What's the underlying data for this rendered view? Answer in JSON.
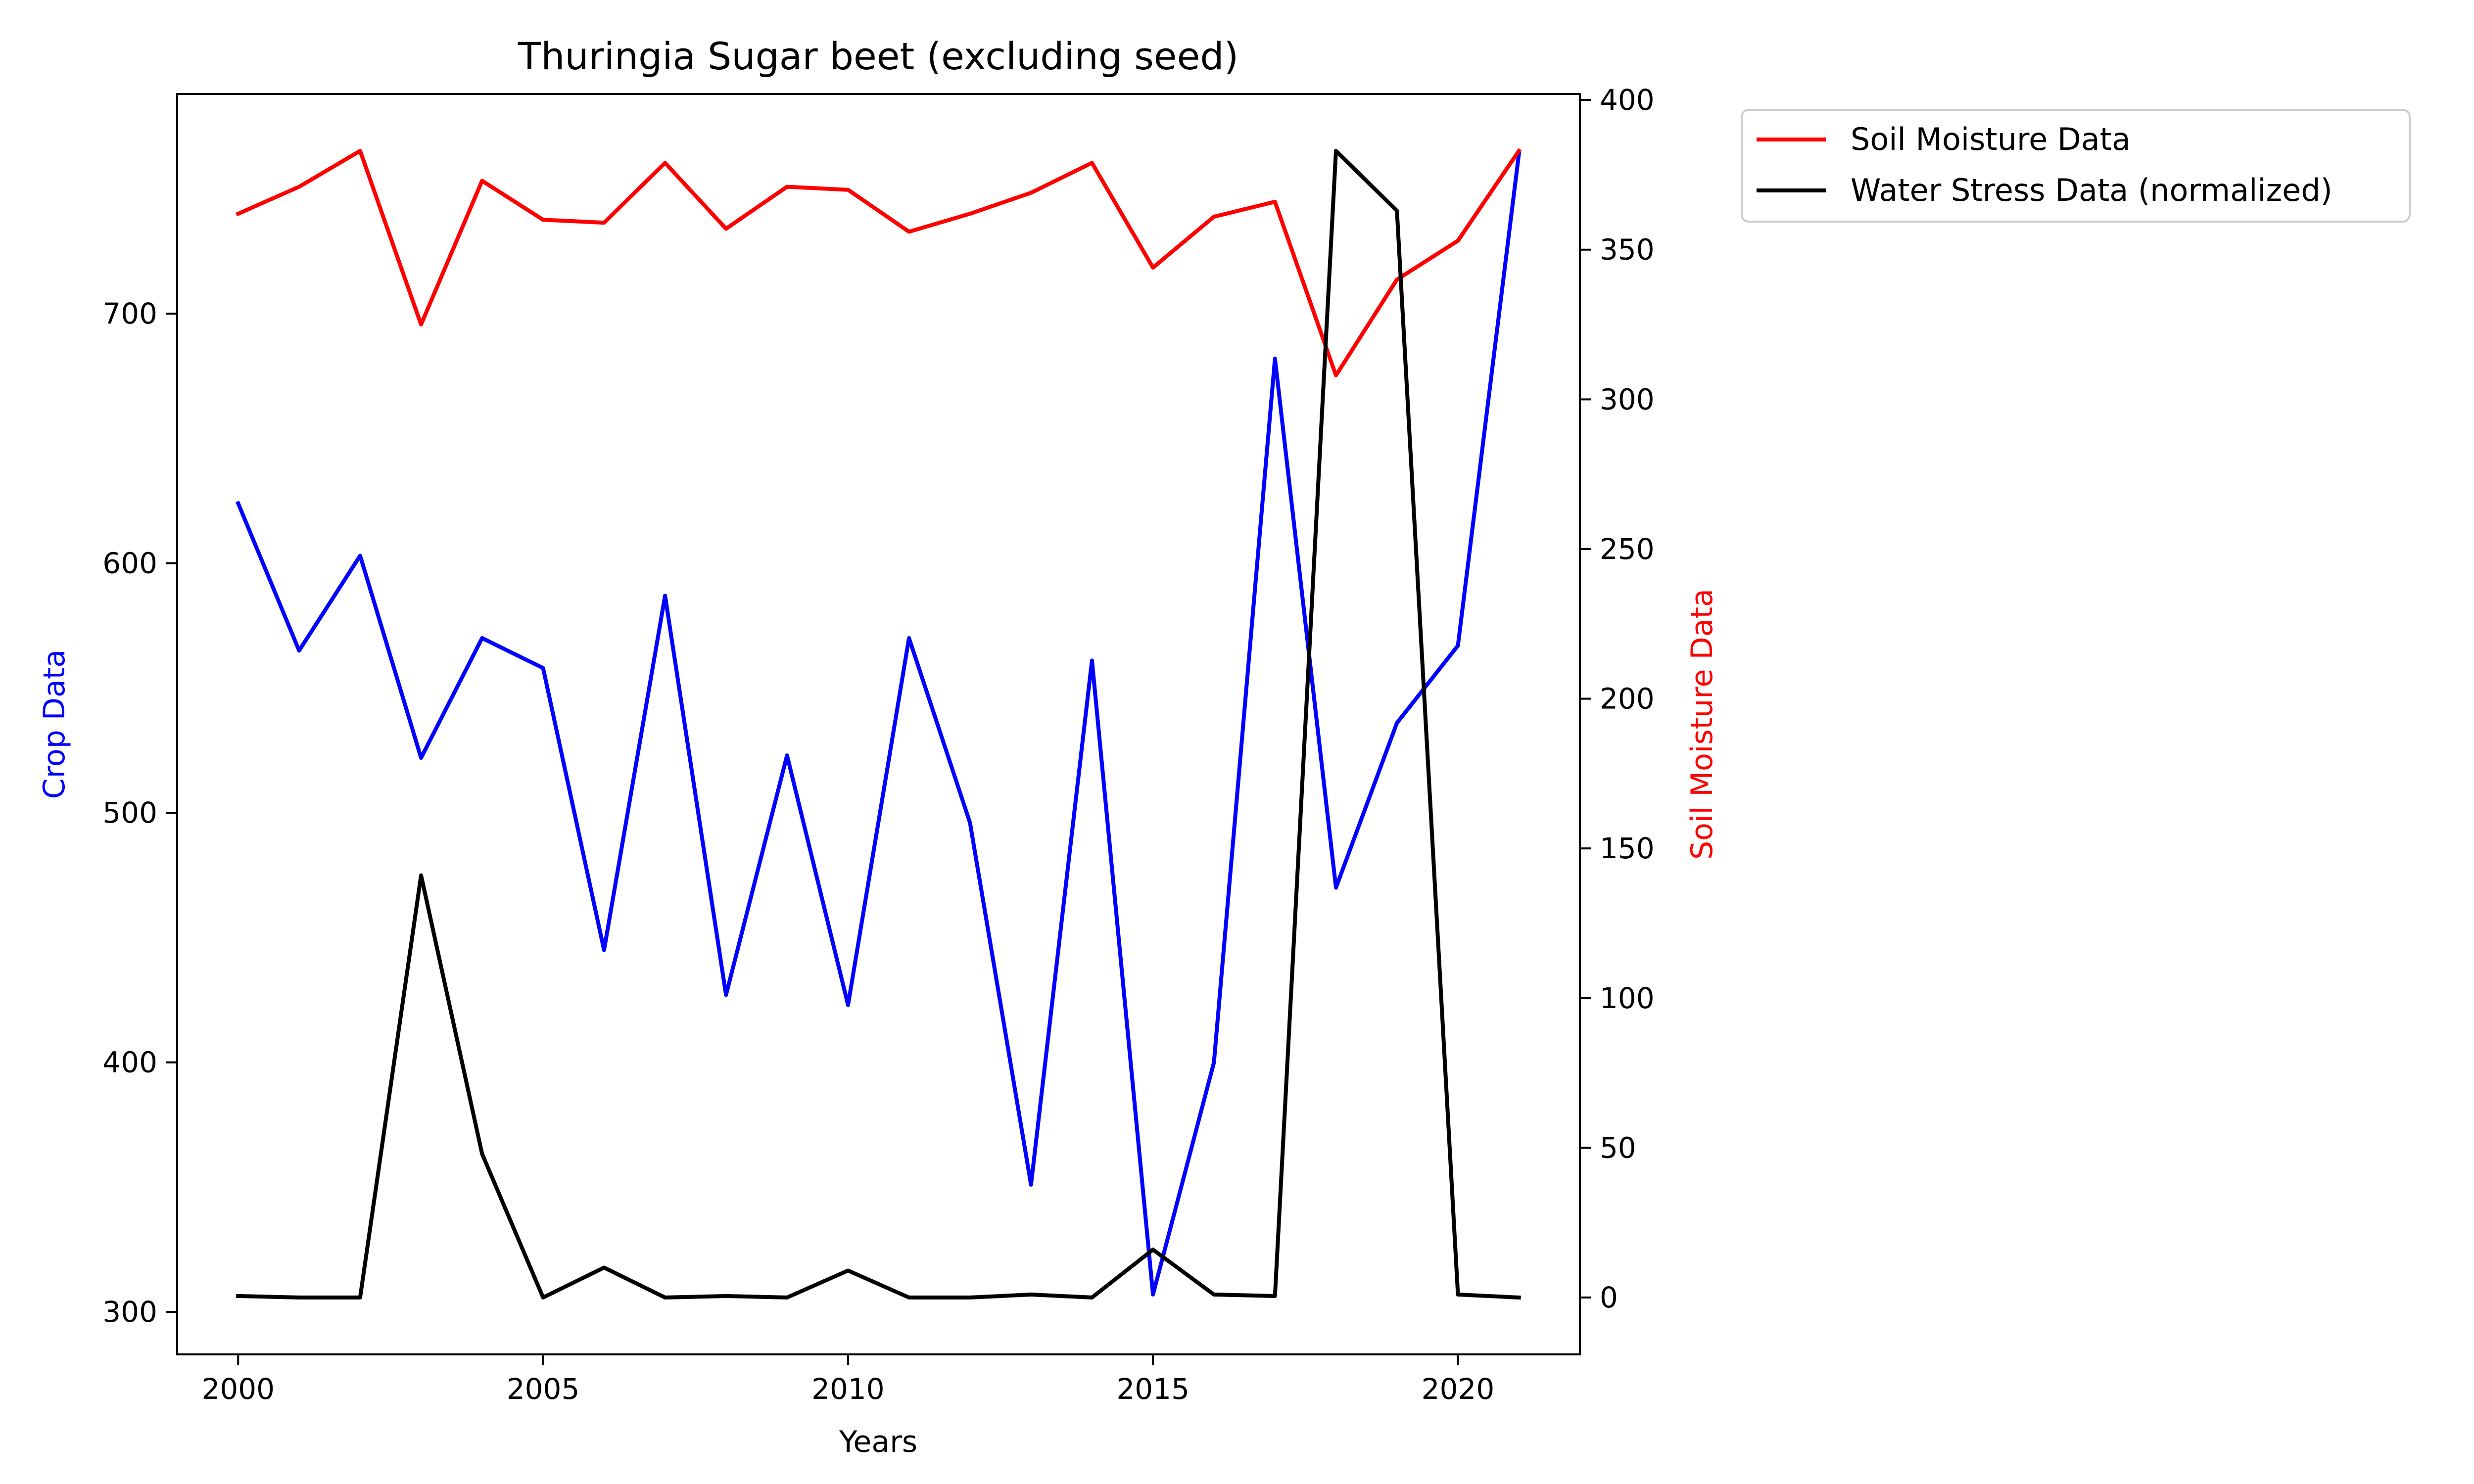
{
  "chart_data": {
    "type": "line",
    "title": "Thuringia Sugar beet (excluding seed)",
    "xlabel": "Years",
    "ylabel_left": "Crop Data",
    "ylabel_right": "Soil Moisture Data",
    "xlim": [
      1999,
      2022
    ],
    "ylim_left": [
      283,
      788
    ],
    "ylim_right": [
      -19,
      402
    ],
    "x_ticks": [
      2000,
      2005,
      2010,
      2015,
      2020
    ],
    "y_ticks_left": [
      300,
      400,
      500,
      600,
      700
    ],
    "y_ticks_right": [
      0,
      50,
      100,
      150,
      200,
      250,
      300,
      350,
      400
    ],
    "grid": false,
    "legend_placement": "outside top-right",
    "x": [
      2000,
      2001,
      2002,
      2003,
      2004,
      2005,
      2006,
      2007,
      2008,
      2009,
      2010,
      2011,
      2012,
      2013,
      2014,
      2015,
      2016,
      2017,
      2018,
      2019,
      2020,
      2021
    ],
    "series": [
      {
        "name": "Crop Data",
        "axis": "left",
        "color": "#0000ff",
        "in_legend": false,
        "values": [
          624,
          565,
          603,
          522,
          570,
          558,
          445,
          587,
          427,
          523,
          423,
          570,
          496,
          351,
          561,
          307,
          400,
          682,
          470,
          536,
          567,
          764
        ]
      },
      {
        "name": "Soil Moisture Data",
        "axis": "right",
        "color": "#ff0000",
        "in_legend": true,
        "values": [
          362,
          371,
          383,
          325,
          373,
          360,
          359,
          379,
          357,
          371,
          370,
          356,
          362,
          369,
          379,
          344,
          361,
          366,
          308,
          340,
          353,
          383
        ]
      },
      {
        "name": "Water Stress Data (normalized)",
        "axis": "right",
        "color": "#000000",
        "in_legend": true,
        "values": [
          0.5,
          0,
          0,
          141,
          48,
          0,
          10,
          0,
          0.5,
          0,
          9,
          0,
          0,
          1,
          0,
          16,
          1,
          0.5,
          383,
          363,
          1,
          0
        ]
      }
    ]
  }
}
